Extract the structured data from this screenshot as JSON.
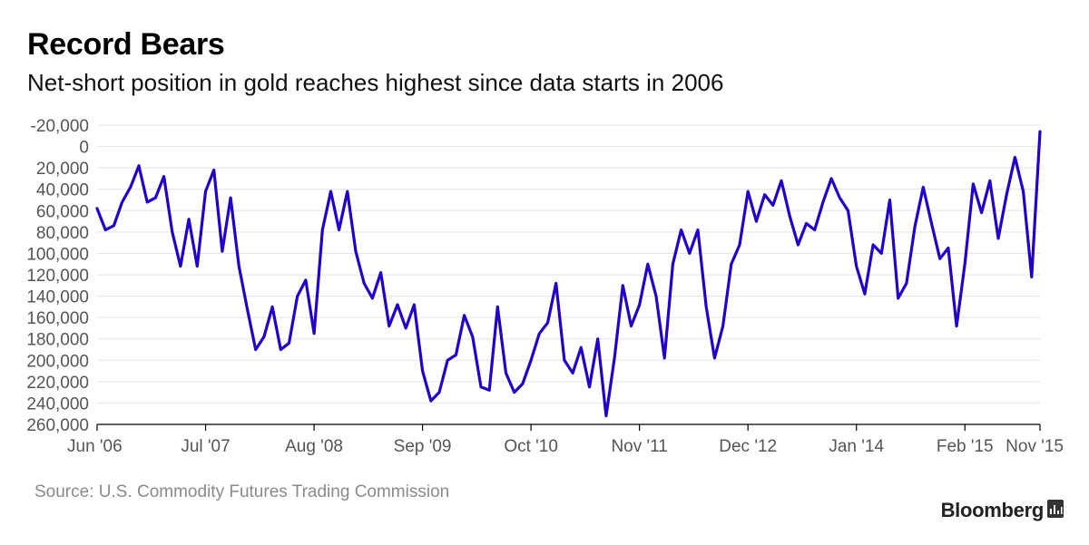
{
  "header": {
    "title": "Record Bears",
    "subtitle": "Net-short position in gold reaches highest since data starts in 2006"
  },
  "footer": {
    "source": "Source: U.S. Commodity Futures Trading Commission",
    "brand": "Bloomberg"
  },
  "colors": {
    "line": "#2200cc",
    "grid": "#e3e3e3",
    "axis": "#000000"
  },
  "chart_data": {
    "type": "line",
    "title": "Record Bears",
    "subtitle": "Net-short position in gold reaches highest since data starts in 2006",
    "xlabel": "",
    "ylabel": "",
    "y_axis_inverted": true,
    "ylim": [
      -20000,
      260000
    ],
    "y_ticks": [
      -20000,
      0,
      20000,
      40000,
      60000,
      80000,
      100000,
      120000,
      140000,
      160000,
      180000,
      200000,
      220000,
      240000,
      260000
    ],
    "y_tick_labels": [
      "-20,000",
      "0",
      "20,000",
      "40,000",
      "60,000",
      "80,000",
      "100,000",
      "120,000",
      "140,000",
      "160,000",
      "180,000",
      "200,000",
      "220,000",
      "240,000",
      "260,000"
    ],
    "xlim": [
      "2006-06",
      "2015-11"
    ],
    "x_ticks": [
      "2006-06",
      "2007-07",
      "2008-08",
      "2009-09",
      "2010-10",
      "2011-11",
      "2012-12",
      "2014-01",
      "2015-02",
      "2015-11"
    ],
    "x_tick_labels": [
      "Jun '06",
      "Jul '07",
      "Aug '08",
      "Sep '09",
      "Oct '10",
      "Nov '11",
      "Dec '12",
      "Jan '14",
      "Feb '15",
      "Nov '15"
    ],
    "grid": true,
    "legend": "none",
    "series": [
      {
        "values": [
          [
            "2006-06",
            58000
          ],
          [
            "2006-07",
            78000
          ],
          [
            "2006-08",
            74000
          ],
          [
            "2006-09",
            52000
          ],
          [
            "2006-10",
            38000
          ],
          [
            "2006-11",
            18000
          ],
          [
            "2006-12",
            52000
          ],
          [
            "2007-01",
            48000
          ],
          [
            "2007-02",
            28000
          ],
          [
            "2007-03",
            80000
          ],
          [
            "2007-04",
            112000
          ],
          [
            "2007-05",
            68000
          ],
          [
            "2007-06",
            112000
          ],
          [
            "2007-07",
            42000
          ],
          [
            "2007-08",
            22000
          ],
          [
            "2007-09",
            98000
          ],
          [
            "2007-10",
            48000
          ],
          [
            "2007-11",
            112000
          ],
          [
            "2007-12",
            152000
          ],
          [
            "2008-01",
            190000
          ],
          [
            "2008-02",
            178000
          ],
          [
            "2008-03",
            150000
          ],
          [
            "2008-04",
            190000
          ],
          [
            "2008-05",
            184000
          ],
          [
            "2008-06",
            140000
          ],
          [
            "2008-07",
            125000
          ],
          [
            "2008-08",
            175000
          ],
          [
            "2008-09",
            78000
          ],
          [
            "2008-10",
            42000
          ],
          [
            "2008-11",
            78000
          ],
          [
            "2008-12",
            42000
          ],
          [
            "2009-01",
            98000
          ],
          [
            "2009-02",
            128000
          ],
          [
            "2009-03",
            142000
          ],
          [
            "2009-04",
            118000
          ],
          [
            "2009-05",
            168000
          ],
          [
            "2009-06",
            148000
          ],
          [
            "2009-07",
            170000
          ],
          [
            "2009-08",
            148000
          ],
          [
            "2009-09",
            210000
          ],
          [
            "2009-10",
            238000
          ],
          [
            "2009-11",
            230000
          ],
          [
            "2009-12",
            200000
          ],
          [
            "2010-01",
            195000
          ],
          [
            "2010-02",
            158000
          ],
          [
            "2010-03",
            178000
          ],
          [
            "2010-04",
            225000
          ],
          [
            "2010-05",
            228000
          ],
          [
            "2010-06",
            150000
          ],
          [
            "2010-07",
            212000
          ],
          [
            "2010-08",
            230000
          ],
          [
            "2010-09",
            222000
          ],
          [
            "2010-10",
            200000
          ],
          [
            "2010-11",
            175000
          ],
          [
            "2010-12",
            165000
          ],
          [
            "2011-01",
            128000
          ],
          [
            "2011-02",
            200000
          ],
          [
            "2011-03",
            212000
          ],
          [
            "2011-04",
            188000
          ],
          [
            "2011-05",
            225000
          ],
          [
            "2011-06",
            180000
          ],
          [
            "2011-07",
            252000
          ],
          [
            "2011-08",
            198000
          ],
          [
            "2011-09",
            130000
          ],
          [
            "2011-10",
            168000
          ],
          [
            "2011-11",
            148000
          ],
          [
            "2011-12",
            110000
          ],
          [
            "2012-01",
            140000
          ],
          [
            "2012-02",
            198000
          ],
          [
            "2012-03",
            110000
          ],
          [
            "2012-04",
            78000
          ],
          [
            "2012-05",
            100000
          ],
          [
            "2012-06",
            78000
          ],
          [
            "2012-07",
            150000
          ],
          [
            "2012-08",
            198000
          ],
          [
            "2012-09",
            168000
          ],
          [
            "2012-10",
            110000
          ],
          [
            "2012-11",
            92000
          ],
          [
            "2012-12",
            42000
          ],
          [
            "2013-01",
            70000
          ],
          [
            "2013-02",
            45000
          ],
          [
            "2013-03",
            55000
          ],
          [
            "2013-04",
            32000
          ],
          [
            "2013-05",
            65000
          ],
          [
            "2013-06",
            92000
          ],
          [
            "2013-07",
            72000
          ],
          [
            "2013-08",
            78000
          ],
          [
            "2013-09",
            52000
          ],
          [
            "2013-10",
            30000
          ],
          [
            "2013-11",
            48000
          ],
          [
            "2013-12",
            60000
          ],
          [
            "2014-01",
            112000
          ],
          [
            "2014-02",
            138000
          ],
          [
            "2014-03",
            92000
          ],
          [
            "2014-04",
            100000
          ],
          [
            "2014-05",
            50000
          ],
          [
            "2014-06",
            142000
          ],
          [
            "2014-07",
            128000
          ],
          [
            "2014-08",
            75000
          ],
          [
            "2014-09",
            38000
          ],
          [
            "2014-10",
            72000
          ],
          [
            "2014-11",
            105000
          ],
          [
            "2014-12",
            95000
          ],
          [
            "2015-01",
            168000
          ],
          [
            "2015-02",
            110000
          ],
          [
            "2015-03",
            35000
          ],
          [
            "2015-04",
            62000
          ],
          [
            "2015-05",
            32000
          ],
          [
            "2015-06",
            86000
          ],
          [
            "2015-07",
            45000
          ],
          [
            "2015-08",
            10000
          ],
          [
            "2015-09",
            42000
          ],
          [
            "2015-10",
            122000
          ],
          [
            "2015-11",
            -14000
          ]
        ]
      }
    ]
  }
}
